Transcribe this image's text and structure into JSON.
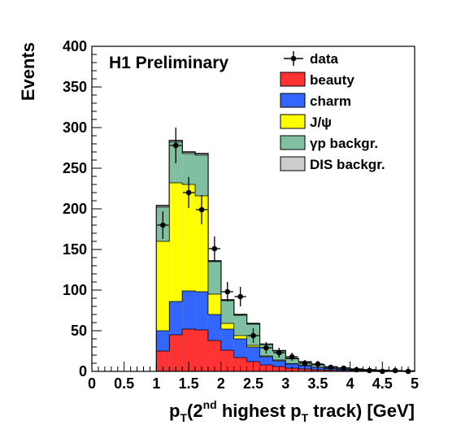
{
  "chart_data": {
    "type": "bar",
    "stacked": true,
    "annotation": "H1 Preliminary",
    "xlabel": {
      "pre": "p",
      "sub1": "T",
      "mid": "(2",
      "sup": "nd",
      "mid2": " highest p",
      "sub2": "T",
      "post": " track) [GeV]"
    },
    "ylabel": "Events",
    "xlim": [
      0,
      5
    ],
    "ylim": [
      0,
      400
    ],
    "xticks": [
      "0",
      "0.5",
      "1",
      "1.5",
      "2",
      "2.5",
      "3",
      "3.5",
      "4",
      "4.5",
      "5"
    ],
    "yticks": [
      "0",
      "50",
      "100",
      "150",
      "200",
      "250",
      "300",
      "350",
      "400"
    ],
    "bin_edges": [
      1.0,
      1.2,
      1.4,
      1.6,
      1.8,
      2.0,
      2.2,
      2.4,
      2.6,
      2.8,
      3.0,
      3.2,
      3.4,
      3.6,
      3.8,
      4.0,
      4.2,
      4.4,
      4.6,
      4.8,
      5.0
    ],
    "series": [
      {
        "name": "beauty",
        "color": "#ff3333",
        "values": [
          25,
          45,
          52,
          51,
          38,
          26,
          17,
          12,
          8,
          6,
          4,
          3,
          2,
          1.5,
          1,
          0.8,
          0.5,
          0.3,
          0.2,
          0.1
        ]
      },
      {
        "name": "charm",
        "color": "#3366ff",
        "values": [
          25,
          41,
          47,
          47,
          32,
          26,
          23,
          18,
          10,
          7,
          5,
          4,
          3,
          2,
          1.5,
          1,
          0.7,
          0.5,
          0.3,
          0.2
        ]
      },
      {
        "name": "J/ψ",
        "color": "#ffff00",
        "values": [
          110,
          146,
          131,
          118,
          25,
          7,
          4,
          2,
          1,
          1,
          0.5,
          0.5,
          0,
          0,
          0,
          0,
          0,
          0,
          0,
          0
        ]
      },
      {
        "name": "γp backgr.",
        "color": "#80c0a0",
        "values": [
          42,
          50,
          38,
          50,
          40,
          28,
          25,
          26,
          14,
          11,
          6,
          4,
          3,
          2,
          1.5,
          1,
          0.8,
          0.5,
          0.3,
          0.2
        ]
      },
      {
        "name": "DIS backgr.",
        "color": "#cccccc",
        "values": [
          2,
          2,
          2,
          2,
          1,
          1,
          1,
          1,
          0.5,
          0.5,
          0.5,
          0.3,
          0.3,
          0.2,
          0.2,
          0.1,
          0.1,
          0.1,
          0,
          0
        ]
      }
    ],
    "data_points": {
      "name": "data",
      "x": [
        1.1,
        1.3,
        1.5,
        1.7,
        1.9,
        2.1,
        2.3,
        2.5,
        2.7,
        2.9,
        3.1,
        3.3,
        3.5,
        3.7,
        3.9,
        4.1,
        4.3,
        4.5,
        4.7,
        4.9
      ],
      "y": [
        180,
        278,
        220,
        199,
        151,
        98,
        92,
        44,
        29,
        23,
        18,
        10,
        9,
        5,
        4,
        2,
        1,
        0,
        1,
        0
      ],
      "err": [
        17,
        22,
        19,
        18,
        15,
        12,
        12,
        9,
        7,
        6,
        5,
        4,
        4,
        3,
        2,
        2,
        1,
        1,
        1,
        1
      ]
    }
  }
}
